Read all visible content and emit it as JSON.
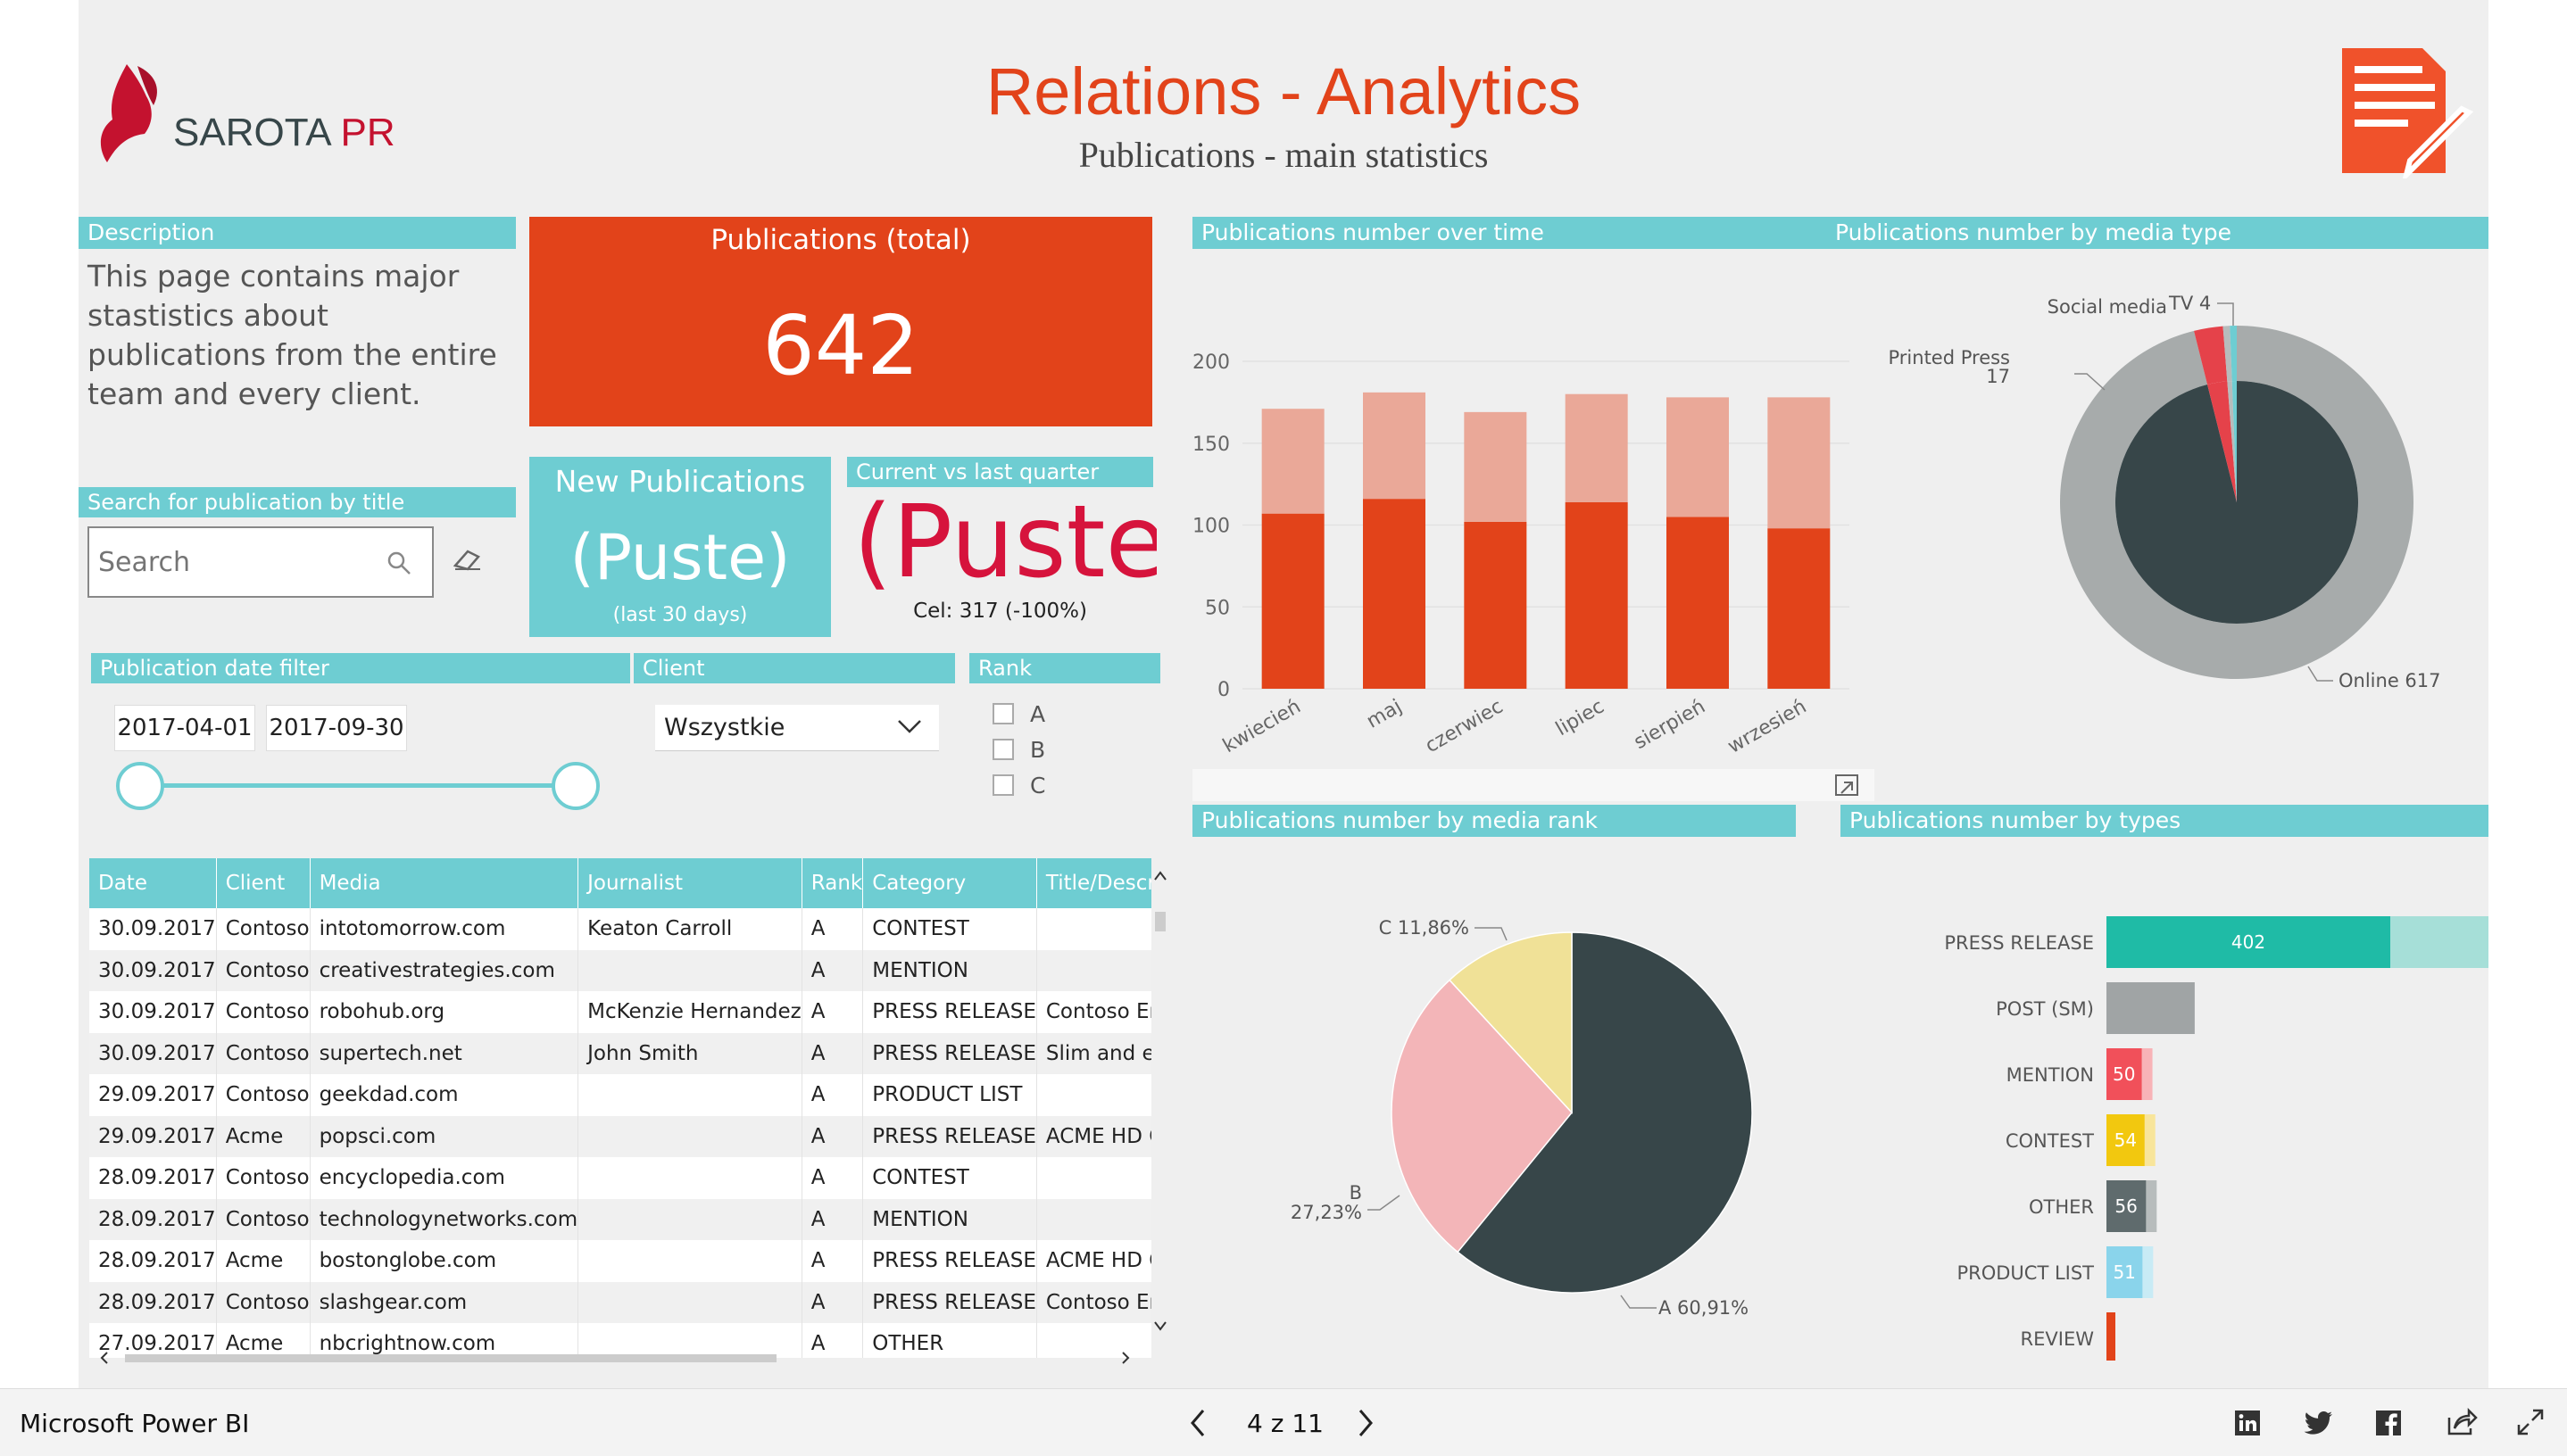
{
  "app": {
    "footer_label": "Microsoft Power BI",
    "page_indicator": "4 z 11"
  },
  "logo": {
    "text_main": "SAROTA",
    "text_accent": "PR"
  },
  "header": {
    "title": "Relations - Analytics",
    "subtitle": "Publications - main statistics"
  },
  "description": {
    "header": "Description",
    "text": "This page contains major stastistics about publications from the entire team and every client."
  },
  "kpi_total": {
    "label": "Publications (total)",
    "value": "642"
  },
  "kpi_new": {
    "label": "New Publications",
    "value": "(Puste)",
    "sub": "(last 30 days)"
  },
  "kpi_quarter": {
    "header": "Current vs last quarter",
    "value": "(Puste)",
    "value_suffix": "!",
    "target": "Cel: 317 (-100%)"
  },
  "search": {
    "header": "Search for publication by title",
    "placeholder": "Search"
  },
  "date_filter": {
    "header": "Publication date filter",
    "start": "2017-04-01",
    "end": "2017-09-30"
  },
  "client_filter": {
    "header": "Client",
    "selected": "Wszystkie"
  },
  "rank_filter": {
    "header": "Rank",
    "options": [
      "A",
      "B",
      "C"
    ]
  },
  "table": {
    "columns": [
      "Date",
      "Client",
      "Media",
      "Journalist",
      "Rank",
      "Category",
      "Title/Description"
    ],
    "rows": [
      [
        "30.09.2017",
        "Contoso",
        "intotomorrow.com",
        "Keaton Carroll",
        "A",
        "CONTEST",
        ""
      ],
      [
        "30.09.2017",
        "Contoso",
        "creativestrategies.com",
        "",
        "A",
        "MENTION",
        ""
      ],
      [
        "30.09.2017",
        "Contoso",
        "robohub.org",
        "McKenzie Hernandez",
        "A",
        "PRESS RELEASE",
        "Contoso Erie -"
      ],
      [
        "30.09.2017",
        "Contoso",
        "supertech.net",
        "John Smith",
        "A",
        "PRESS RELEASE",
        "Slim and elega"
      ],
      [
        "29.09.2017",
        "Contoso",
        "geekdad.com",
        "",
        "A",
        "PRODUCT LIST",
        ""
      ],
      [
        "29.09.2017",
        "Acme",
        "popsci.com",
        "",
        "A",
        "PRESS RELEASE",
        "ACME HD CON"
      ],
      [
        "28.09.2017",
        "Contoso",
        "encyclopedia.com",
        "",
        "A",
        "CONTEST",
        ""
      ],
      [
        "28.09.2017",
        "Contoso",
        "technologynetworks.com",
        "",
        "A",
        "MENTION",
        ""
      ],
      [
        "28.09.2017",
        "Acme",
        "bostonglobe.com",
        "",
        "A",
        "PRESS RELEASE",
        "ACME HD CON"
      ],
      [
        "28.09.2017",
        "Contoso",
        "slashgear.com",
        "",
        "A",
        "PRESS RELEASE",
        "Contoso Erie -"
      ],
      [
        "27.09.2017",
        "Acme",
        "nbcrightnow.com",
        "",
        "A",
        "OTHER",
        ""
      ]
    ]
  },
  "colors": {
    "teal": "#6ecdd2",
    "orange": "#e2431a",
    "light_orange": "#eaa898",
    "dark": "#374649",
    "crimson": "#d6133c"
  },
  "chart_data": [
    {
      "type": "bar",
      "title": "Publications number over time",
      "categories": [
        "kwiecień",
        "maj",
        "czerwiec",
        "lipiec",
        "sierpień",
        "wrzesień"
      ],
      "series": [
        {
          "name": "base",
          "values": [
            107,
            116,
            102,
            114,
            105,
            98
          ]
        },
        {
          "name": "stacked",
          "values": [
            64,
            65,
            67,
            66,
            73,
            80
          ]
        }
      ],
      "yticks": [
        0,
        50,
        100,
        150,
        200
      ],
      "ylim": [
        0,
        200
      ]
    },
    {
      "type": "pie",
      "title": "Publications number by media type",
      "labels": [
        "Online",
        "Printed Press",
        "Social media",
        "TV"
      ],
      "values": [
        617,
        17,
        4,
        4
      ],
      "display_labels": [
        "Online 617",
        "Printed Press",
        "17",
        "Social media",
        "TV 4"
      ]
    },
    {
      "type": "pie",
      "title": "Publications number by media rank",
      "labels": [
        "A",
        "B",
        "C"
      ],
      "values": [
        60.91,
        27.23,
        11.86
      ],
      "display_labels": [
        "A 60,91%",
        "B",
        "27,23%",
        "C 11,86%"
      ]
    },
    {
      "type": "bar",
      "orientation": "horizontal",
      "title": "Publications number by types",
      "categories": [
        "PRESS RELEASE",
        "POST (SM)",
        "MENTION",
        "CONTEST",
        "OTHER",
        "PRODUCT LIST",
        "REVIEW"
      ],
      "values": [
        402,
        "",
        50,
        54,
        56,
        51,
        ""
      ],
      "value_estimates": [
        402,
        125,
        50,
        54,
        56,
        51,
        14
      ]
    }
  ]
}
